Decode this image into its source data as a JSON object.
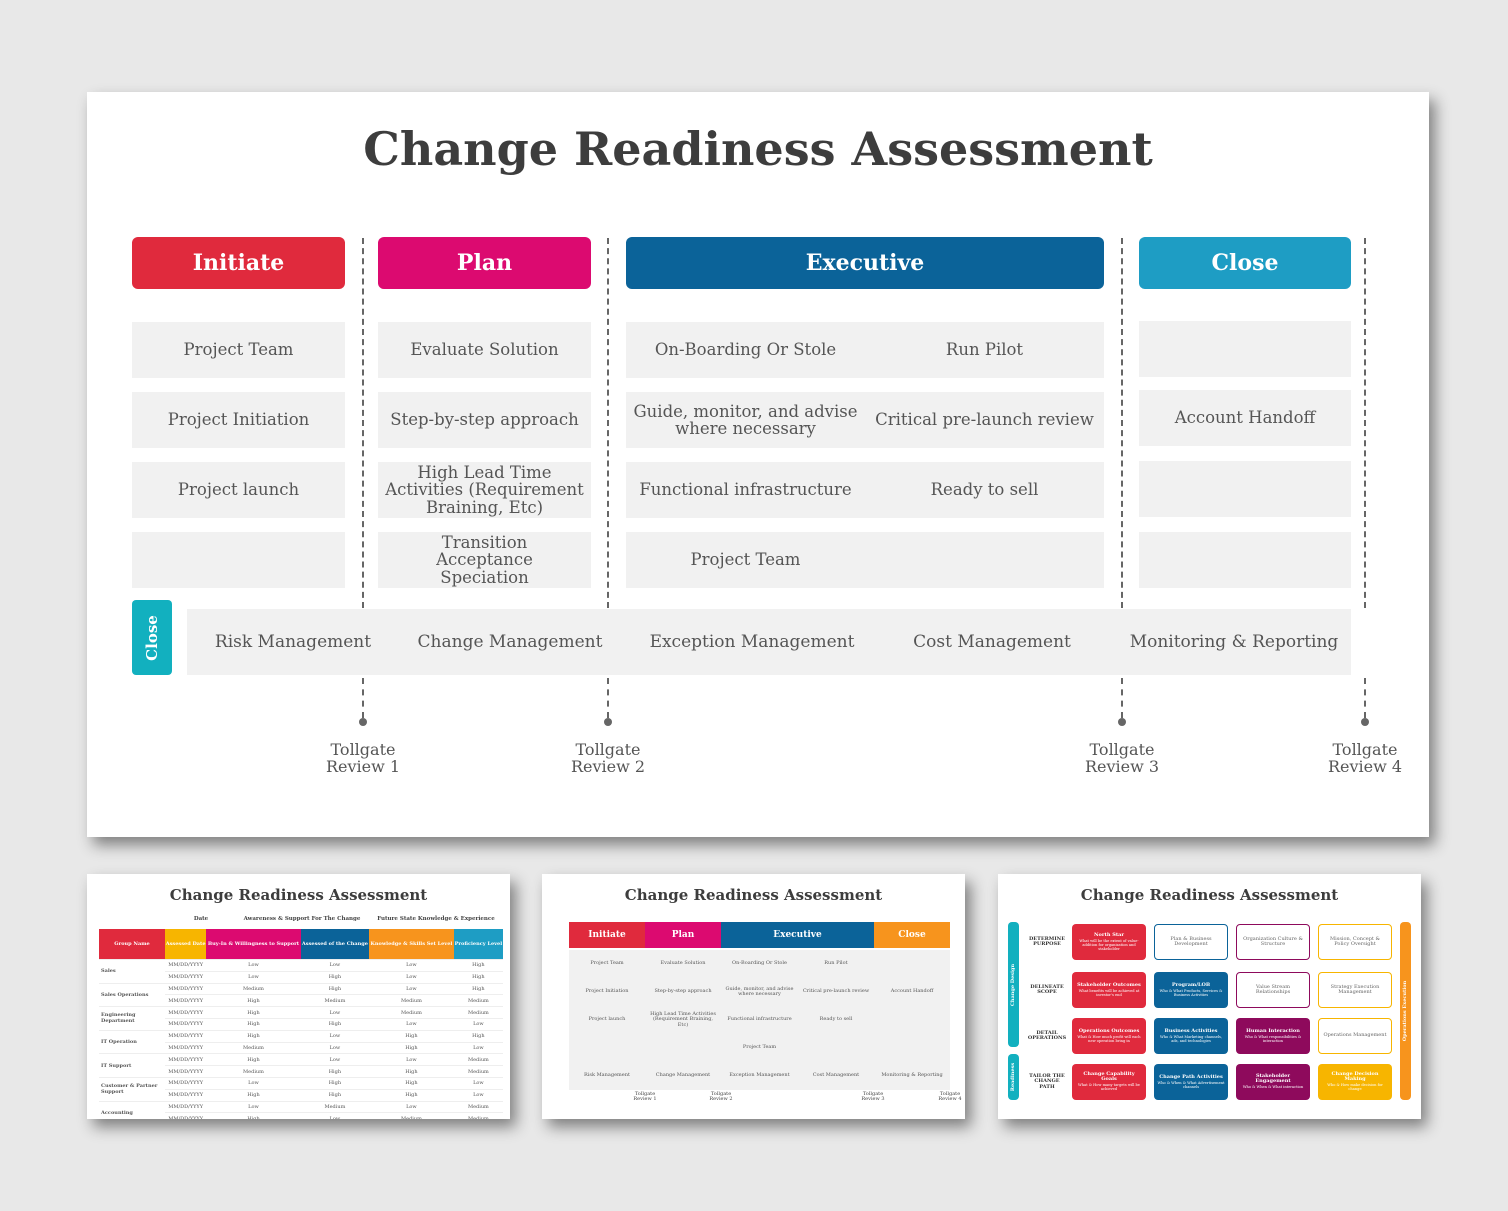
{
  "main": {
    "title": "Change Readiness Assessment",
    "phases": [
      {
        "label": "Initiate",
        "color": "#e02a3d"
      },
      {
        "label": "Plan",
        "color": "#dc0a70"
      },
      {
        "label": "Executive",
        "color": "#0b6399"
      },
      {
        "label": "Close",
        "color": "#1e9dc4"
      }
    ],
    "initiate_items": [
      "Project Team",
      "Project Initiation",
      "Project launch",
      ""
    ],
    "plan_items": [
      "Evaluate Solution",
      "Step-by-step approach",
      "High Lead Time Activities (Requirement Braining, Etc)",
      "Transition Acceptance Speciation"
    ],
    "executive_rows": [
      {
        "left": "On-Boarding Or Stole",
        "right": "Run Pilot"
      },
      {
        "left": "Guide, monitor, and advise where necessary",
        "right": "Critical pre-launch review"
      },
      {
        "left": "Functional infrastructure",
        "right": "Ready to sell"
      },
      {
        "left": "Project Team",
        "right": ""
      }
    ],
    "close_items": [
      "",
      "Account Handoff",
      "",
      ""
    ],
    "band": {
      "tab_label": "Close",
      "tab_color": "#12b0bf",
      "items": [
        "Risk Management",
        "Change Management",
        "Exception Management",
        "Cost Management",
        "Monitoring & Reporting"
      ]
    },
    "tollgates": [
      {
        "line1": "Tollgate",
        "line2": "Review 1"
      },
      {
        "line1": "Tollgate",
        "line2": "Review 2"
      },
      {
        "line1": "Tollgate",
        "line2": "Review 3"
      },
      {
        "line1": "Tollgate",
        "line2": "Review 4"
      }
    ]
  },
  "thumb1": {
    "title": "Change Readiness Assessment",
    "group_headers": [
      "Date",
      "Awareness & Support For The Change",
      "Future State Knowledge & Experience"
    ],
    "columns": [
      {
        "label": "Group Name",
        "color": "#e02a3d"
      },
      {
        "label": "Assessed Date",
        "color": "#f7b500"
      },
      {
        "label": "Buy-In & Willingness to Support",
        "color": "#dc0a70"
      },
      {
        "label": "Assessed of the Change",
        "color": "#0b6399"
      },
      {
        "label": "Knowledge & Skills Set Level",
        "color": "#f7941d"
      },
      {
        "label": "Proficiency Level",
        "color": "#1e9dc4"
      }
    ],
    "groups": [
      {
        "name": "Sales",
        "rows": [
          [
            "MM/DD/YYYY",
            "Low",
            "Low",
            "Low",
            "High"
          ],
          [
            "MM/DD/YYYY",
            "Low",
            "High",
            "Low",
            "High"
          ]
        ]
      },
      {
        "name": "Sales Operations",
        "rows": [
          [
            "MM/DD/YYYY",
            "Medium",
            "High",
            "Low",
            "High"
          ],
          [
            "MM/DD/YYYY",
            "High",
            "Medium",
            "Medium",
            "Medium"
          ]
        ]
      },
      {
        "name": "Engineering Department",
        "rows": [
          [
            "MM/DD/YYYY",
            "High",
            "Low",
            "Medium",
            "Medium"
          ],
          [
            "MM/DD/YYYY",
            "High",
            "High",
            "Low",
            "Low"
          ]
        ]
      },
      {
        "name": "IT Operation",
        "rows": [
          [
            "MM/DD/YYYY",
            "High",
            "Low",
            "High",
            "High"
          ],
          [
            "MM/DD/YYYY",
            "Medium",
            "Low",
            "High",
            "Low"
          ]
        ]
      },
      {
        "name": "IT Support",
        "rows": [
          [
            "MM/DD/YYYY",
            "High",
            "Low",
            "Low",
            "Medium"
          ],
          [
            "MM/DD/YYYY",
            "Medium",
            "High",
            "High",
            "Medium"
          ]
        ]
      },
      {
        "name": "Customer & Partner Support",
        "rows": [
          [
            "MM/DD/YYYY",
            "Low",
            "High",
            "High",
            "Low"
          ],
          [
            "MM/DD/YYYY",
            "High",
            "High",
            "High",
            "Low"
          ]
        ]
      },
      {
        "name": "Accounting",
        "rows": [
          [
            "MM/DD/YYYY",
            "Low",
            "Medium",
            "Low",
            "Medium"
          ],
          [
            "MM/DD/YYYY",
            "High",
            "Low",
            "Medium",
            "Medium"
          ]
        ]
      }
    ]
  },
  "thumb2": {
    "title": "Change Readiness Assessment",
    "phases": [
      {
        "label": "Initiate",
        "color": "#e02a3d"
      },
      {
        "label": "Plan",
        "color": "#dc0a70"
      },
      {
        "label": "Executive",
        "color": "#0b6399"
      },
      {
        "label": "Close",
        "color": "#f7941d"
      }
    ],
    "rows": [
      [
        "Project Team",
        "Evaluate Solution",
        "On-Boarding Or Stole",
        "Run Pilot",
        ""
      ],
      [
        "Project Initiation",
        "Step-by-step approach",
        "Guide, monitor, and advise where necessary",
        "Critical pre-launch review",
        "Account Handoff"
      ],
      [
        "Project launch",
        "High Lead Time Activities (Requirement Braining, Etc)",
        "Functional infrastructure",
        "Ready to sell",
        ""
      ],
      [
        "",
        "",
        "Project Team",
        "",
        ""
      ],
      [
        "Risk Management",
        "Change Management",
        "Exception Management",
        "Cost Management",
        "Monitoring & Reporting"
      ]
    ],
    "tollgates": [
      "Tollgate Review 1",
      "Tollgate Review 2",
      "Tollgate Review 3",
      "Tollgate Review 4"
    ]
  },
  "thumb3": {
    "title": "Change Readiness Assessment",
    "side_left": [
      {
        "label": "Change Design",
        "color": "#12b0bf"
      },
      {
        "label": "Readiness",
        "color": "#12b0bf"
      }
    ],
    "side_right": {
      "label": "Operations Execution",
      "color": "#f7941d"
    },
    "rows": [
      {
        "label": "DETERMINE PURPOSE",
        "boxes": [
          {
            "title": "North Star",
            "sub": "What will be the extent of value-addition for organization and stakeholder",
            "color": "#e02a3d"
          },
          {
            "title": "Plan & Business Development",
            "sub": "",
            "color": "outline-blue"
          },
          {
            "title": "Organization Culture & Structure",
            "sub": "",
            "color": "outline-purple"
          },
          {
            "title": "Mission, Concept & Policy Oversight",
            "sub": "",
            "color": "outline-yellow"
          }
        ]
      },
      {
        "label": "DELINEATE SCOPE",
        "boxes": [
          {
            "title": "Stakeholder Outcomes",
            "sub": "What benefits will be achieved at investor's end",
            "color": "#e02a3d"
          },
          {
            "title": "Program/LOB",
            "sub": "Who & What Products, Services & Business Activities",
            "color": "#0b6399"
          },
          {
            "title": "Value Stream Relationships",
            "sub": "",
            "color": "outline-purple"
          },
          {
            "title": "Strategy Execution Management",
            "sub": "",
            "color": "outline-yellow"
          }
        ]
      },
      {
        "label": "DETAIL OPERATIONS",
        "boxes": [
          {
            "title": "Operations Outcomes",
            "sub": "What & How much profit will each new operation bring in",
            "color": "#e02a3d"
          },
          {
            "title": "Business Activities",
            "sub": "Who & What Marketing channels, ads, and technologies",
            "color": "#0b6399"
          },
          {
            "title": "Human Interaction",
            "sub": "Who & What responsibilities & interaction",
            "color": "#8e0a5c"
          },
          {
            "title": "Operations Management",
            "sub": "",
            "color": "outline-yellow"
          }
        ]
      },
      {
        "label": "TAILOR THE CHANGE PATH",
        "boxes": [
          {
            "title": "Change Capability Goals",
            "sub": "What & How many targets will be achieved",
            "color": "#e02a3d"
          },
          {
            "title": "Change Path Activities",
            "sub": "Who & When & What Advertisement channels",
            "color": "#0b6399"
          },
          {
            "title": "Stakeholder Engagement",
            "sub": "Who & When & What interaction",
            "color": "#8e0a5c"
          },
          {
            "title": "Change Decision Making",
            "sub": "Who & How make decision for change",
            "color": "#f7b500"
          }
        ]
      }
    ]
  }
}
